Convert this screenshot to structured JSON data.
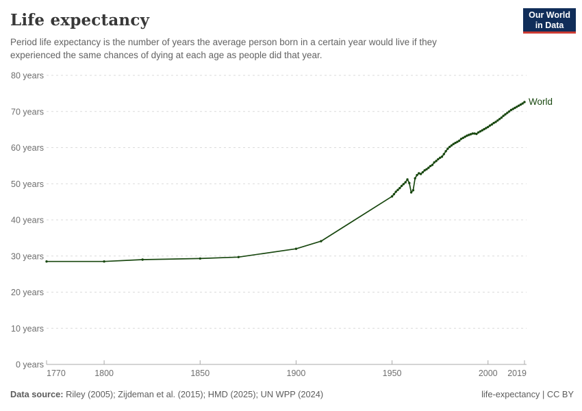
{
  "header": {
    "title": "Life expectancy",
    "subtitle": "Period life expectancy is the number of years the average person born in a certain year would live if they experienced the same chances of dying at each age as people did that year.",
    "logo": {
      "line1": "Our World",
      "line2": "in Data",
      "bg_color": "#102d59",
      "accent_color": "#cc3b33"
    }
  },
  "footer": {
    "source_label": "Data source:",
    "source_text": " Riley (2005); Zijdeman et al. (2015); HMD (2025); UN WPP (2024)",
    "right_text": "life-expectancy | CC BY"
  },
  "chart_data": {
    "type": "line",
    "title": "Life expectancy",
    "xlabel": "",
    "ylabel": "",
    "xlim": [
      1770,
      2019
    ],
    "ylim": [
      0,
      80
    ],
    "x_ticks": [
      1770,
      1800,
      1850,
      1900,
      1950,
      2000,
      2019
    ],
    "y_ticks": [
      0,
      10,
      20,
      30,
      40,
      50,
      60,
      70,
      80
    ],
    "y_tick_suffix": " years",
    "grid": "horizontal-dashed",
    "legend_position": "end-of-line-label",
    "colors": {
      "series": "#18470f",
      "grid": "#dadada",
      "axis": "#a8a8a8",
      "tick_label": "#6e6e6e"
    },
    "series": [
      {
        "name": "World",
        "color": "#18470f",
        "points": [
          [
            1770,
            28.5
          ],
          [
            1800,
            28.5
          ],
          [
            1820,
            29.0
          ],
          [
            1850,
            29.3
          ],
          [
            1870,
            29.7
          ],
          [
            1900,
            32.0
          ],
          [
            1913,
            34.1
          ],
          [
            1950,
            46.5
          ],
          [
            1951,
            47.1
          ],
          [
            1952,
            47.8
          ],
          [
            1953,
            48.3
          ],
          [
            1954,
            48.8
          ],
          [
            1955,
            49.4
          ],
          [
            1956,
            49.9
          ],
          [
            1957,
            50.4
          ],
          [
            1958,
            51.2
          ],
          [
            1959,
            50.2
          ],
          [
            1960,
            47.6
          ],
          [
            1961,
            48.2
          ],
          [
            1962,
            51.5
          ],
          [
            1963,
            52.4
          ],
          [
            1964,
            52.9
          ],
          [
            1965,
            52.7
          ],
          [
            1966,
            53.2
          ],
          [
            1967,
            53.7
          ],
          [
            1968,
            54.0
          ],
          [
            1969,
            54.4
          ],
          [
            1970,
            54.9
          ],
          [
            1971,
            55.2
          ],
          [
            1972,
            55.9
          ],
          [
            1973,
            56.3
          ],
          [
            1974,
            56.8
          ],
          [
            1975,
            57.2
          ],
          [
            1976,
            57.5
          ],
          [
            1977,
            58.2
          ],
          [
            1978,
            59.0
          ],
          [
            1979,
            59.7
          ],
          [
            1980,
            60.2
          ],
          [
            1981,
            60.6
          ],
          [
            1982,
            61.0
          ],
          [
            1983,
            61.3
          ],
          [
            1984,
            61.6
          ],
          [
            1985,
            61.9
          ],
          [
            1986,
            62.4
          ],
          [
            1987,
            62.7
          ],
          [
            1988,
            63.0
          ],
          [
            1989,
            63.3
          ],
          [
            1990,
            63.5
          ],
          [
            1991,
            63.7
          ],
          [
            1992,
            63.9
          ],
          [
            1993,
            63.9
          ],
          [
            1994,
            63.8
          ],
          [
            1995,
            64.2
          ],
          [
            1996,
            64.5
          ],
          [
            1997,
            64.8
          ],
          [
            1998,
            65.1
          ],
          [
            1999,
            65.4
          ],
          [
            2000,
            65.7
          ],
          [
            2001,
            66.1
          ],
          [
            2002,
            66.4
          ],
          [
            2003,
            66.8
          ],
          [
            2004,
            67.1
          ],
          [
            2005,
            67.5
          ],
          [
            2006,
            67.9
          ],
          [
            2007,
            68.3
          ],
          [
            2008,
            68.8
          ],
          [
            2009,
            69.2
          ],
          [
            2010,
            69.6
          ],
          [
            2011,
            70.0
          ],
          [
            2012,
            70.4
          ],
          [
            2013,
            70.7
          ],
          [
            2014,
            71.0
          ],
          [
            2015,
            71.3
          ],
          [
            2016,
            71.6
          ],
          [
            2017,
            71.9
          ],
          [
            2018,
            72.2
          ],
          [
            2019,
            72.6
          ]
        ]
      }
    ]
  }
}
